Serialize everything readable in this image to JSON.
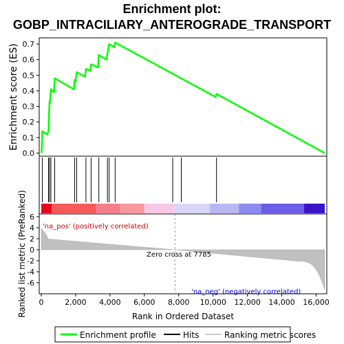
{
  "chart_data": {
    "type": "line",
    "title_line1": "Enrichment plot:",
    "title_line2": "GOBP_INTRACILIARY_ANTEROGRADE_TRANSPORT",
    "top_panel": {
      "ylabel": "Enrichment score (ES)",
      "ylim": [
        -0.02,
        0.74
      ],
      "yticks": [
        "0.0",
        "0.1",
        "0.2",
        "0.3",
        "0.4",
        "0.5",
        "0.6",
        "0.7"
      ],
      "ytick_values": [
        0.0,
        0.1,
        0.2,
        0.3,
        0.4,
        0.5,
        0.6,
        0.7
      ],
      "series": [
        {
          "name": "Enrichment profile",
          "color": "#00ff00",
          "x": [
            0,
            20,
            60,
            350,
            420,
            440,
            480,
            500,
            560,
            740,
            780,
            1900,
            1940,
            2000,
            2060,
            2550,
            2600,
            2850,
            2900,
            3300,
            3350,
            3800,
            3850,
            3900,
            3950,
            4250,
            4300,
            10150,
            10200,
            16500
          ],
          "y": [
            0.0,
            0.01,
            0.14,
            0.12,
            0.14,
            0.21,
            0.33,
            0.32,
            0.41,
            0.39,
            0.48,
            0.41,
            0.47,
            0.46,
            0.52,
            0.49,
            0.54,
            0.53,
            0.57,
            0.55,
            0.63,
            0.6,
            0.64,
            0.67,
            0.7,
            0.68,
            0.71,
            0.36,
            0.38,
            0.0
          ]
        }
      ]
    },
    "hits": {
      "name": "Hits",
      "x": [
        60,
        420,
        480,
        560,
        780,
        1940,
        2060,
        2600,
        2900,
        3350,
        3850,
        3950,
        4300,
        7650,
        8150,
        10200
      ]
    },
    "bottom_panel": {
      "ylabel": "Ranked list metric (PreRanked)",
      "ylim": [
        -8,
        6.5
      ],
      "yticks": [
        "6",
        "4",
        "2",
        "0",
        "-2",
        "-4",
        "-6"
      ],
      "ytick_values": [
        6,
        4,
        2,
        0,
        -2,
        -4,
        -6
      ],
      "series_name": "Ranking metric scores",
      "zero_cross_label": "Zero cross at 7785",
      "zero_cross_x": 7785,
      "pos_label": "'na_pos' (positively correlated)",
      "neg_label": "'na_neg' (negatively correlated)"
    },
    "xlabel": "Rank in Dataset",
    "xlabel_full": "Rank in Ordered Dataset",
    "xlim": [
      0,
      16500
    ],
    "xticks": [
      "0",
      "2,000",
      "4,000",
      "6,000",
      "8,000",
      "10,000",
      "12,000",
      "14,000",
      "16,000"
    ],
    "xtick_values": [
      0,
      2000,
      4000,
      6000,
      8000,
      10000,
      12000,
      14000,
      16000
    ],
    "legend": [
      {
        "name": "Enrichment profile",
        "color": "#00ff00"
      },
      {
        "name": "Hits",
        "color": "#000000"
      },
      {
        "name": "Ranking metric scores",
        "color": "#cccccc"
      }
    ],
    "colors": {
      "profile": "#00ff00",
      "hits": "#000000",
      "metric": "#c0c0c0",
      "pos_text": "#cc0000",
      "neg_text": "#0000cc"
    }
  }
}
